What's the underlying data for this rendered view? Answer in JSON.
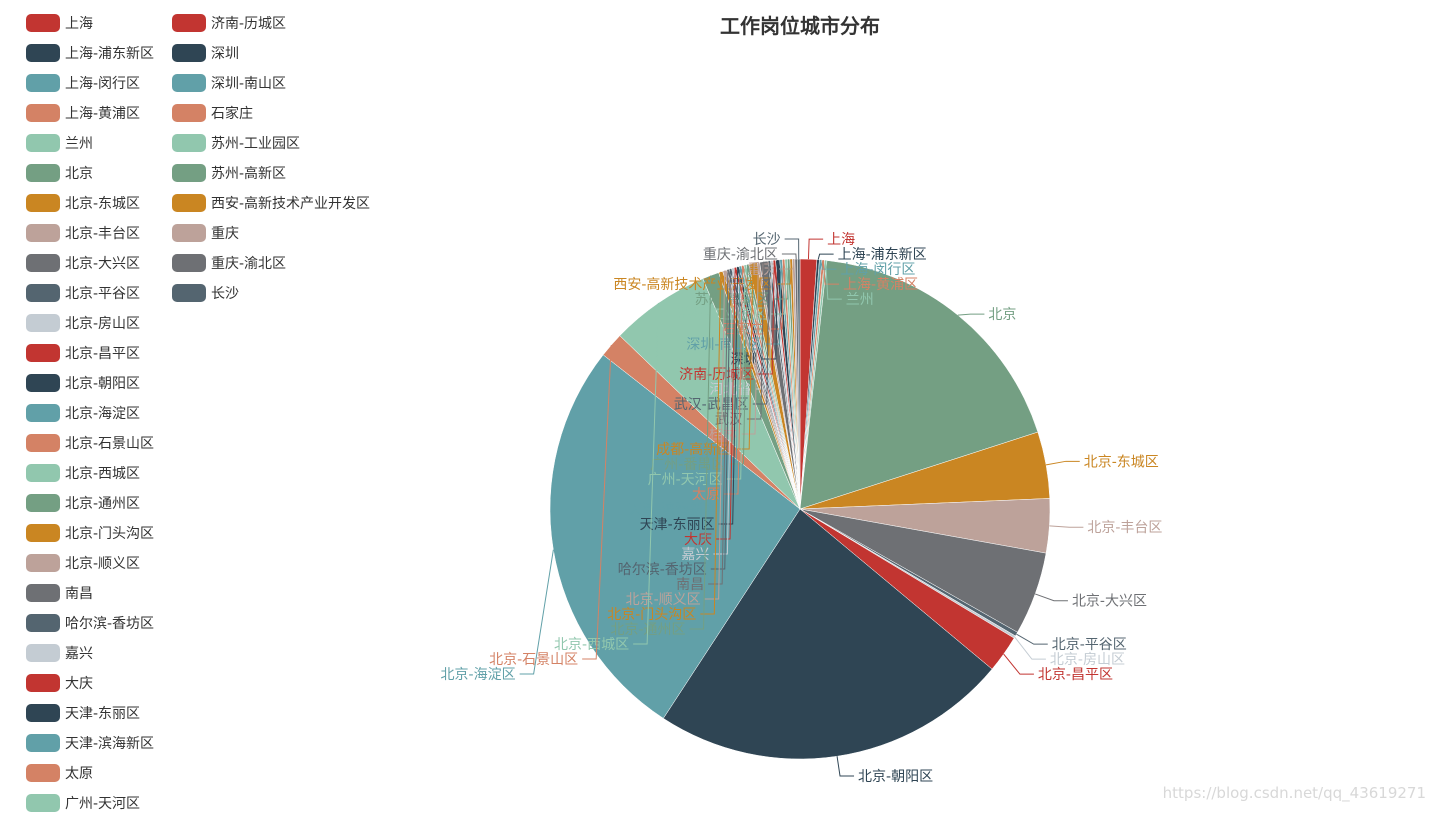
{
  "chart_data": {
    "type": "pie",
    "title": "工作岗位城市分布",
    "legend_placement": "left",
    "legend_visible": [
      "上海",
      "上海-浦东新区",
      "上海-闵行区",
      "上海-黄浦区",
      "兰州",
      "北京",
      "北京-东城区",
      "北京-丰台区",
      "北京-大兴区",
      "北京-平谷区",
      "北京-房山区",
      "北京-昌平区",
      "北京-朝阳区",
      "北京-海淀区",
      "北京-石景山区",
      "北京-西城区",
      "北京-通州区",
      "北京-门头沟区",
      "北京-顺义区",
      "南昌",
      "哈尔滨-香坊区",
      "嘉兴",
      "大庆",
      "天津-东丽区",
      "天津-滨海新区",
      "太原",
      "广州-天河区",
      "济南-历城区",
      "深圳",
      "深圳-南山区",
      "石家庄",
      "苏州-工业园区",
      "苏州-高新区",
      "西安-高新技术产业开发区",
      "重庆",
      "重庆-渝北区",
      "长沙"
    ],
    "series": [
      {
        "name": "上海",
        "value": 2
      },
      {
        "name": "上海-浦东新区",
        "value": 0.3
      },
      {
        "name": "上海-闵行区",
        "value": 0.3
      },
      {
        "name": "上海-黄浦区",
        "value": 0.3
      },
      {
        "name": "兰州",
        "value": 0.3
      },
      {
        "name": "北京",
        "value": 34
      },
      {
        "name": "北京-东城区",
        "value": 8
      },
      {
        "name": "北京-丰台区",
        "value": 6.5
      },
      {
        "name": "北京-大兴区",
        "value": 10
      },
      {
        "name": "北京-平谷区",
        "value": 0.5
      },
      {
        "name": "北京-房山区",
        "value": 0.3
      },
      {
        "name": "北京-昌平区",
        "value": 4.5
      },
      {
        "name": "北京-朝阳区",
        "value": 43
      },
      {
        "name": "北京-海淀区",
        "value": 49
      },
      {
        "name": "北京-石景山区",
        "value": 3
      },
      {
        "name": "北京-西城区",
        "value": 12
      },
      {
        "name": "北京-通州区",
        "value": 2
      },
      {
        "name": "北京-门头沟区",
        "value": 0.5
      },
      {
        "name": "北京-顺义区",
        "value": 0.5
      },
      {
        "name": "南昌",
        "value": 0.3
      },
      {
        "name": "哈尔滨-香坊区",
        "value": 0.3
      },
      {
        "name": "嘉兴",
        "value": 0.3
      },
      {
        "name": "大庆",
        "value": 0.3
      },
      {
        "name": "天津-东丽区",
        "value": 0.3
      },
      {
        "name": "天津-滨海新区",
        "value": 0.3
      },
      {
        "name": "太原",
        "value": 0.3
      },
      {
        "name": "广州-天河区",
        "value": 0.3
      },
      {
        "name": "广州-番禺区",
        "value": 0.3
      },
      {
        "name": "成都-高新区",
        "value": 1
      },
      {
        "name": "桂林",
        "value": 0.3
      },
      {
        "name": "武汉",
        "value": 1
      },
      {
        "name": "武汉-武昌区",
        "value": 0.3
      },
      {
        "name": "河北省",
        "value": 0.3
      },
      {
        "name": "济南-历城区",
        "value": 0.3
      },
      {
        "name": "深圳",
        "value": 0.5
      },
      {
        "name": "深圳-南山区",
        "value": 0.3
      },
      {
        "name": "石家庄",
        "value": 0.3
      },
      {
        "name": "苏州-工业园区",
        "value": 0.3
      },
      {
        "name": "苏州-高新区",
        "value": 0.3
      },
      {
        "name": "西安-高新技术产业开发区",
        "value": 0.3
      },
      {
        "name": "重庆",
        "value": 0.3
      },
      {
        "name": "重庆-渝北区",
        "value": 0.3
      },
      {
        "name": "长沙",
        "value": 0.3
      }
    ],
    "palette": [
      "#c23531",
      "#2f4554",
      "#61a0a8",
      "#d48265",
      "#91c7ae",
      "#749f83",
      "#ca8622",
      "#bda29a",
      "#6e7074",
      "#546570",
      "#c4ccd3"
    ]
  },
  "watermark": "https://blog.csdn.net/qq_43619271"
}
